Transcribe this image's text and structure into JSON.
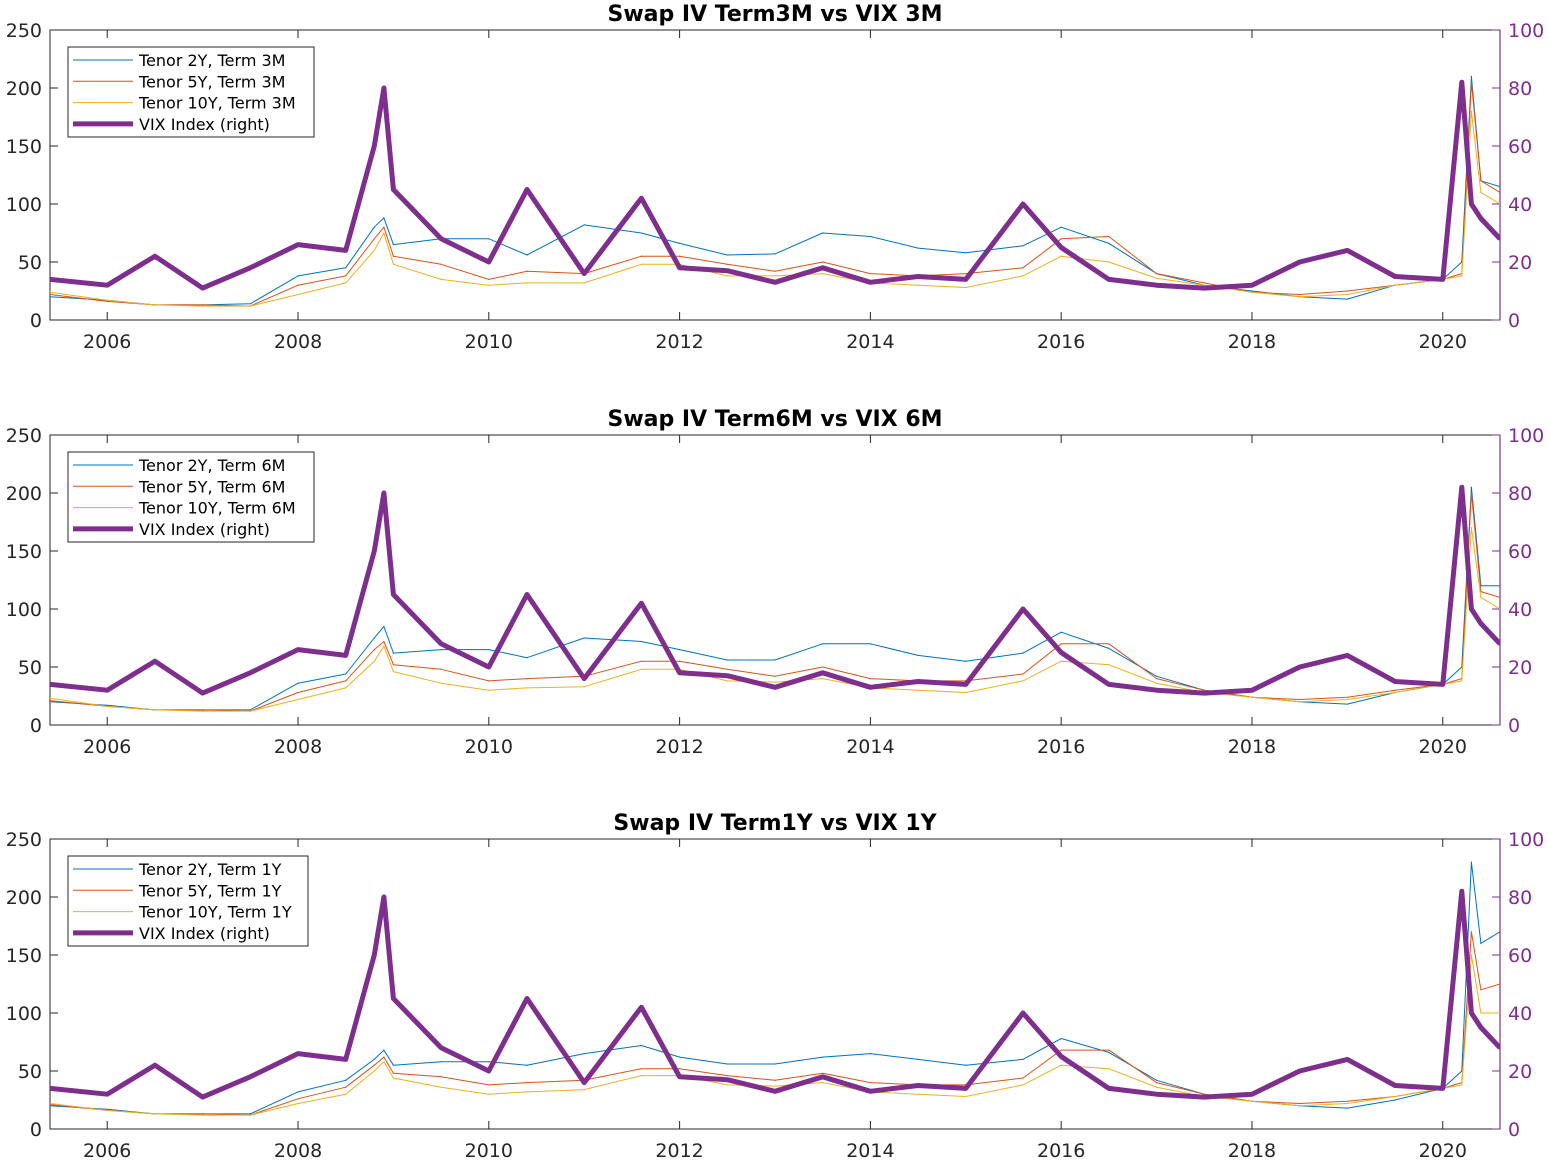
{
  "chart_data": [
    {
      "type": "line",
      "title": "Swap IV Term3M vs VIX 3M",
      "xlim": [
        2005.4,
        2020.6
      ],
      "ylim_left": [
        0,
        250
      ],
      "ylim_right": [
        0,
        100
      ],
      "x_ticks": [
        2006,
        2008,
        2010,
        2012,
        2014,
        2016,
        2018,
        2020
      ],
      "y_ticks_left": [
        0,
        50,
        100,
        150,
        200,
        250
      ],
      "y_ticks_right": [
        0,
        20,
        40,
        60,
        80,
        100
      ],
      "legend_position": "top-left",
      "grid": false,
      "x": [
        2005.4,
        2006,
        2006.5,
        2007,
        2007.5,
        2008,
        2008.5,
        2008.8,
        2008.9,
        2009,
        2009.5,
        2010,
        2010.4,
        2011,
        2011.6,
        2012,
        2012.5,
        2013,
        2013.5,
        2014,
        2014.5,
        2015,
        2015.6,
        2016,
        2016.5,
        2017,
        2017.5,
        2018,
        2018.5,
        2019,
        2019.5,
        2020,
        2020.2,
        2020.3,
        2020.4,
        2020.6
      ],
      "series": [
        {
          "name": "Tenor 2Y, Term 3M",
          "color": "#0072BD",
          "axis": "left",
          "values": [
            20,
            17,
            13,
            13,
            14,
            38,
            45,
            80,
            88,
            65,
            70,
            70,
            56,
            82,
            75,
            66,
            56,
            57,
            75,
            72,
            62,
            58,
            64,
            80,
            66,
            40,
            30,
            25,
            20,
            18,
            30,
            35,
            50,
            210,
            120,
            115
          ]
        },
        {
          "name": "Tenor 5Y, Term 3M",
          "color": "#D95319",
          "axis": "left",
          "values": [
            22,
            16,
            13,
            13,
            12,
            30,
            38,
            70,
            80,
            55,
            48,
            35,
            42,
            40,
            55,
            55,
            48,
            42,
            50,
            40,
            38,
            40,
            45,
            70,
            72,
            40,
            32,
            24,
            22,
            25,
            30,
            35,
            40,
            205,
            120,
            110
          ]
        },
        {
          "name": "Tenor 10Y, Term 3M",
          "color": "#EDB120",
          "axis": "left",
          "values": [
            24,
            17,
            13,
            12,
            12,
            22,
            32,
            60,
            75,
            48,
            35,
            30,
            32,
            32,
            48,
            48,
            38,
            38,
            40,
            32,
            30,
            28,
            38,
            55,
            50,
            36,
            30,
            24,
            20,
            22,
            30,
            35,
            38,
            180,
            110,
            100
          ]
        },
        {
          "name": "VIX Index (right)",
          "color": "#7E2F8E",
          "axis": "right",
          "values": [
            14,
            12,
            22,
            11,
            18,
            26,
            24,
            60,
            80,
            45,
            28,
            20,
            45,
            16,
            42,
            18,
            17,
            13,
            18,
            13,
            15,
            14,
            40,
            25,
            14,
            12,
            11,
            12,
            20,
            24,
            15,
            14,
            82,
            40,
            35,
            28
          ]
        }
      ]
    },
    {
      "type": "line",
      "title": "Swap IV Term6M vs VIX 6M",
      "xlim": [
        2005.4,
        2020.6
      ],
      "ylim_left": [
        0,
        250
      ],
      "ylim_right": [
        0,
        100
      ],
      "x_ticks": [
        2006,
        2008,
        2010,
        2012,
        2014,
        2016,
        2018,
        2020
      ],
      "y_ticks_left": [
        0,
        50,
        100,
        150,
        200,
        250
      ],
      "y_ticks_right": [
        0,
        20,
        40,
        60,
        80,
        100
      ],
      "legend_position": "top-left",
      "grid": false,
      "x": [
        2005.4,
        2006,
        2006.5,
        2007,
        2007.5,
        2008,
        2008.5,
        2008.8,
        2008.9,
        2009,
        2009.5,
        2010,
        2010.4,
        2011,
        2011.6,
        2012,
        2012.5,
        2013,
        2013.5,
        2014,
        2014.5,
        2015,
        2015.6,
        2016,
        2016.5,
        2017,
        2017.5,
        2018,
        2018.5,
        2019,
        2019.5,
        2020,
        2020.2,
        2020.3,
        2020.4,
        2020.6
      ],
      "series": [
        {
          "name": "Tenor 2Y, Term 6M",
          "color": "#0072BD",
          "axis": "left",
          "values": [
            20,
            17,
            13,
            13,
            13,
            36,
            44,
            75,
            85,
            62,
            65,
            65,
            58,
            75,
            72,
            65,
            56,
            56,
            70,
            70,
            60,
            55,
            62,
            80,
            66,
            42,
            30,
            24,
            20,
            18,
            28,
            35,
            50,
            205,
            120,
            120
          ]
        },
        {
          "name": "Tenor 5Y, Term 6M",
          "color": "#D95319",
          "axis": "left",
          "values": [
            21,
            16,
            13,
            13,
            12,
            28,
            38,
            65,
            72,
            52,
            48,
            38,
            40,
            42,
            55,
            55,
            48,
            42,
            50,
            40,
            38,
            38,
            44,
            70,
            70,
            40,
            30,
            24,
            22,
            24,
            30,
            35,
            40,
            200,
            115,
            110
          ]
        },
        {
          "name": "Tenor 10Y, Term 6M",
          "color": "#EDB120",
          "axis": "left",
          "values": [
            23,
            16,
            13,
            12,
            12,
            22,
            32,
            55,
            68,
            46,
            36,
            30,
            32,
            33,
            48,
            48,
            38,
            37,
            40,
            32,
            30,
            28,
            38,
            55,
            52,
            36,
            28,
            24,
            20,
            22,
            28,
            35,
            38,
            170,
            110,
            100
          ]
        },
        {
          "name": "VIX Index (right)",
          "color": "#7E2F8E",
          "axis": "right",
          "values": [
            14,
            12,
            22,
            11,
            18,
            26,
            24,
            60,
            80,
            45,
            28,
            20,
            45,
            16,
            42,
            18,
            17,
            13,
            18,
            13,
            15,
            14,
            40,
            25,
            14,
            12,
            11,
            12,
            20,
            24,
            15,
            14,
            82,
            40,
            35,
            28
          ]
        }
      ]
    },
    {
      "type": "line",
      "title": "Swap IV Term1Y vs VIX 1Y",
      "xlim": [
        2005.4,
        2020.6
      ],
      "ylim_left": [
        0,
        250
      ],
      "ylim_right": [
        0,
        100
      ],
      "x_ticks": [
        2006,
        2008,
        2010,
        2012,
        2014,
        2016,
        2018,
        2020
      ],
      "y_ticks_left": [
        0,
        50,
        100,
        150,
        200,
        250
      ],
      "y_ticks_right": [
        0,
        20,
        40,
        60,
        80,
        100
      ],
      "legend_position": "top-left",
      "grid": false,
      "x": [
        2005.4,
        2006,
        2006.5,
        2007,
        2007.5,
        2008,
        2008.5,
        2008.8,
        2008.9,
        2009,
        2009.5,
        2010,
        2010.4,
        2011,
        2011.6,
        2012,
        2012.5,
        2013,
        2013.5,
        2014,
        2014.5,
        2015,
        2015.6,
        2016,
        2016.5,
        2017,
        2017.5,
        2018,
        2018.5,
        2019,
        2019.5,
        2020,
        2020.2,
        2020.3,
        2020.4,
        2020.6
      ],
      "series": [
        {
          "name": "Tenor 2Y, Term 1Y",
          "color": "#0072BD",
          "axis": "left",
          "values": [
            20,
            17,
            13,
            13,
            13,
            32,
            42,
            60,
            68,
            55,
            58,
            58,
            55,
            65,
            72,
            62,
            56,
            56,
            62,
            65,
            60,
            55,
            60,
            78,
            66,
            42,
            30,
            24,
            20,
            18,
            25,
            35,
            50,
            230,
            160,
            170
          ]
        },
        {
          "name": "Tenor 5Y, Term 1Y",
          "color": "#D95319",
          "axis": "left",
          "values": [
            21,
            16,
            13,
            13,
            12,
            26,
            36,
            55,
            62,
            48,
            45,
            38,
            40,
            42,
            52,
            52,
            46,
            42,
            48,
            40,
            38,
            38,
            44,
            68,
            68,
            40,
            30,
            24,
            22,
            24,
            28,
            35,
            40,
            170,
            120,
            125
          ]
        },
        {
          "name": "Tenor 10Y, Term 1Y",
          "color": "#EDB120",
          "axis": "left",
          "values": [
            22,
            16,
            13,
            12,
            12,
            22,
            30,
            50,
            58,
            44,
            36,
            30,
            32,
            34,
            46,
            46,
            38,
            37,
            40,
            32,
            30,
            28,
            38,
            55,
            52,
            36,
            28,
            24,
            20,
            22,
            28,
            35,
            38,
            150,
            100,
            100
          ]
        },
        {
          "name": "VIX Index (right)",
          "color": "#7E2F8E",
          "axis": "right",
          "values": [
            14,
            12,
            22,
            11,
            18,
            26,
            24,
            60,
            80,
            45,
            28,
            20,
            45,
            16,
            42,
            18,
            17,
            13,
            18,
            13,
            15,
            14,
            40,
            25,
            14,
            12,
            11,
            12,
            20,
            24,
            15,
            14,
            82,
            40,
            35,
            28
          ]
        }
      ]
    }
  ],
  "colors": {
    "axis": "#262626",
    "right_axis": "#7E2F8E"
  }
}
